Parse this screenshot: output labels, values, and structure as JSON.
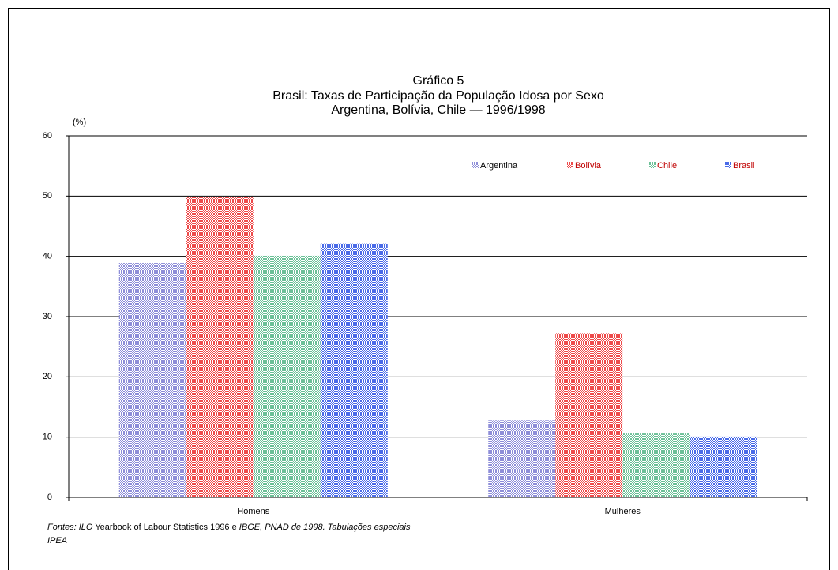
{
  "chart_data": {
    "type": "bar",
    "title": "Gráfico 5",
    "subtitle": [
      "Brasil: Taxas de Participação da População Idosa por Sexo",
      "Argentina, Bolívia, Chile — 1996/1998"
    ],
    "y_unit": "(%)",
    "categories": [
      "Homens",
      "Mulheres"
    ],
    "series": [
      {
        "name": "Argentina",
        "color": "#8e8ed8",
        "values": [
          38.9,
          12.8
        ]
      },
      {
        "name": "Bolívia",
        "color": "#ee4a4a",
        "values": [
          49.9,
          27.2
        ]
      },
      {
        "name": "Chile",
        "color": "#6cc097",
        "values": [
          40.1,
          10.6
        ]
      },
      {
        "name": "Brasil",
        "color": "#4a6be8",
        "values": [
          42.1,
          10.1
        ]
      }
    ],
    "ylim": [
      0,
      60
    ],
    "yticks": [
      0,
      10,
      20,
      30,
      40,
      50,
      60
    ],
    "grid": true,
    "legend": "top-right",
    "source": [
      "Fontes: ILO",
      " Yearbook of Labour Statistics 1996 e ",
      "IBGE, PNAD de 1998. Tabulações especiais",
      "IPEA"
    ]
  }
}
